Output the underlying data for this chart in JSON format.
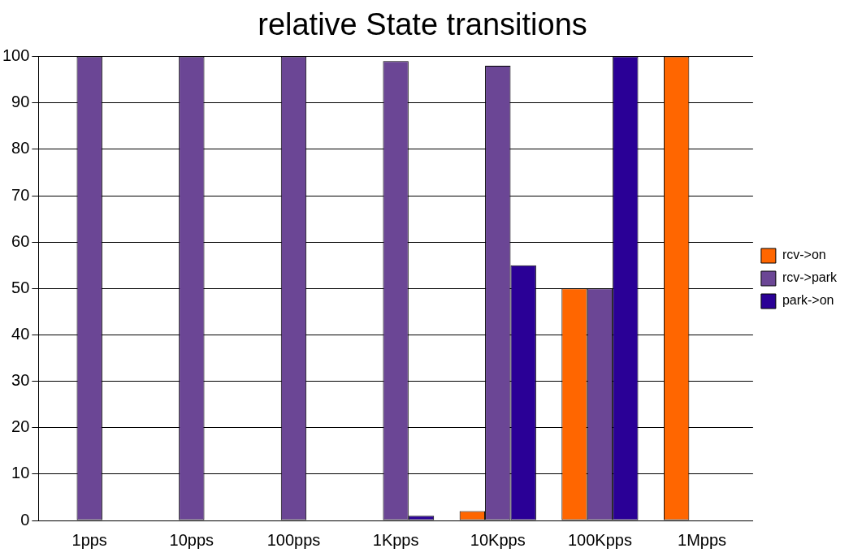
{
  "chart_data": {
    "type": "bar",
    "title": "relative State transitions",
    "categories": [
      "1pps",
      "10pps",
      "100pps",
      "1Kpps",
      "10Kpps",
      "100Kpps",
      "1Mpps"
    ],
    "series": [
      {
        "name": "rcv->on",
        "color": "#ff6600",
        "values": [
          0,
          0,
          0,
          0,
          2,
          50,
          100
        ]
      },
      {
        "name": "rcv->park",
        "color": "#6b4695",
        "values": [
          100,
          100,
          100,
          99,
          98,
          50,
          0
        ]
      },
      {
        "name": "park->on",
        "color": "#2a0096",
        "values": [
          0,
          0,
          0,
          1,
          55,
          100,
          0
        ]
      }
    ],
    "ylim": [
      0,
      100
    ],
    "yticks": [
      0,
      10,
      20,
      30,
      40,
      50,
      60,
      70,
      80,
      90,
      100
    ],
    "grid": "y",
    "legend": "right"
  }
}
